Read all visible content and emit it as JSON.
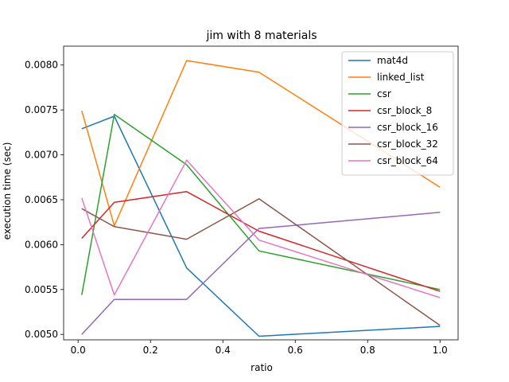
{
  "chart_data": {
    "type": "line",
    "title": "jim with 8 materials",
    "xlabel": "ratio",
    "ylabel": "execution time (sec)",
    "xlim": [
      -0.04,
      1.05
    ],
    "ylim": [
      0.00494,
      0.00821
    ],
    "xticks": [
      0.0,
      0.2,
      0.4,
      0.6,
      0.8,
      1.0
    ],
    "xtick_labels": [
      "0.0",
      "0.2",
      "0.4",
      "0.6",
      "0.8",
      "1.0"
    ],
    "yticks": [
      0.005,
      0.0055,
      0.006,
      0.0065,
      0.007,
      0.0075,
      0.008
    ],
    "ytick_labels": [
      "0.0050",
      "0.0055",
      "0.0060",
      "0.0065",
      "0.0070",
      "0.0075",
      "0.0080"
    ],
    "grid": false,
    "legend_position": "top-right",
    "x": [
      0.01,
      0.1,
      0.3,
      0.5,
      1.0
    ],
    "series": [
      {
        "name": "mat4d",
        "color": "#1f77b4",
        "values": [
          0.00729,
          0.00743,
          0.00574,
          0.00498,
          0.00509
        ]
      },
      {
        "name": "linked_list",
        "color": "#ff7f0e",
        "values": [
          0.00749,
          0.00621,
          0.00805,
          0.00792,
          0.00664
        ]
      },
      {
        "name": "csr",
        "color": "#2ca02c",
        "values": [
          0.00544,
          0.00745,
          0.00689,
          0.00593,
          0.0055
        ]
      },
      {
        "name": "csr_block_8",
        "color": "#d62728",
        "values": [
          0.00607,
          0.00647,
          0.00659,
          0.00615,
          0.00548
        ]
      },
      {
        "name": "csr_block_16",
        "color": "#9467bd",
        "values": [
          0.005,
          0.00539,
          0.00539,
          0.00618,
          0.00636
        ]
      },
      {
        "name": "csr_block_32",
        "color": "#8c564b",
        "values": [
          0.0064,
          0.0062,
          0.00606,
          0.00651,
          0.0051
        ]
      },
      {
        "name": "csr_block_64",
        "color": "#e377c2",
        "values": [
          0.00652,
          0.00544,
          0.00694,
          0.00605,
          0.00541
        ]
      }
    ]
  }
}
